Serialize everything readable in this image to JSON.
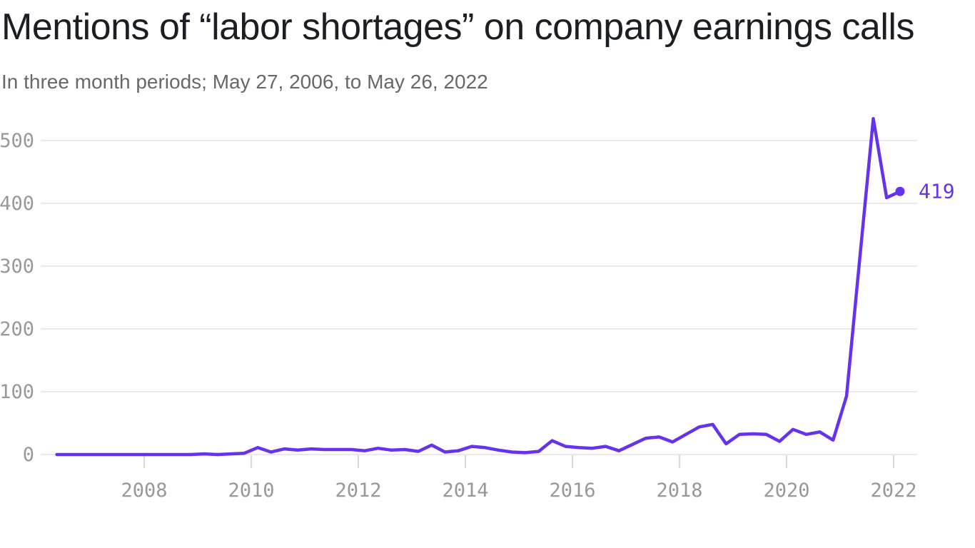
{
  "header": {
    "title": "Mentions of “labor shortages” on company earnings calls",
    "subtitle": "In three month periods; May 27, 2006, to May 26, 2022"
  },
  "chart_data": {
    "type": "line",
    "title": "Mentions of “labor shortages” on company earnings calls",
    "subtitle": "In three month periods; May 27, 2006, to May 26, 2022",
    "x_description": "Three-month periods ending on the labeled date, May 27, 2006 to May 26, 2022",
    "categories": [
      "Aug 2006",
      "Nov 2006",
      "Feb 2007",
      "May 2007",
      "Aug 2007",
      "Nov 2007",
      "Feb 2008",
      "May 2008",
      "Aug 2008",
      "Nov 2008",
      "Feb 2009",
      "May 2009",
      "Aug 2009",
      "Nov 2009",
      "Feb 2010",
      "May 2010",
      "Aug 2010",
      "Nov 2010",
      "Feb 2011",
      "May 2011",
      "Aug 2011",
      "Nov 2011",
      "Feb 2012",
      "May 2012",
      "Aug 2012",
      "Nov 2012",
      "Feb 2013",
      "May 2013",
      "Aug 2013",
      "Nov 2013",
      "Feb 2014",
      "May 2014",
      "Aug 2014",
      "Nov 2014",
      "Feb 2015",
      "May 2015",
      "Aug 2015",
      "Nov 2015",
      "Feb 2016",
      "May 2016",
      "Aug 2016",
      "Nov 2016",
      "Feb 2017",
      "May 2017",
      "Aug 2017",
      "Nov 2017",
      "Feb 2018",
      "May 2018",
      "Aug 2018",
      "Nov 2018",
      "Feb 2019",
      "May 2019",
      "Aug 2019",
      "Nov 2019",
      "Feb 2020",
      "May 2020",
      "Aug 2020",
      "Nov 2020",
      "Feb 2021",
      "May 2021",
      "Aug 2021",
      "Nov 2021",
      "Feb 2022",
      "May 2022"
    ],
    "values": [
      0,
      0,
      0,
      0,
      0,
      0,
      0,
      0,
      0,
      0,
      0,
      1,
      0,
      1,
      2,
      11,
      4,
      9,
      7,
      9,
      8,
      8,
      8,
      6,
      10,
      7,
      8,
      5,
      15,
      4,
      6,
      13,
      11,
      7,
      4,
      3,
      5,
      22,
      13,
      11,
      10,
      13,
      6,
      16,
      26,
      28,
      20,
      32,
      44,
      48,
      17,
      32,
      33,
      32,
      21,
      40,
      32,
      36,
      23,
      93,
      314,
      535,
      409,
      419
    ],
    "x_plot_start_year": 2006.37,
    "x_step_years": 0.25,
    "xticks": [
      "2008",
      "2010",
      "2012",
      "2014",
      "2016",
      "2018",
      "2020",
      "2022"
    ],
    "xtick_years": [
      2008,
      2010,
      2012,
      2014,
      2016,
      2018,
      2020,
      2022
    ],
    "yticks": [
      "0",
      "100",
      "200",
      "300",
      "400",
      "500"
    ],
    "ytick_values": [
      0,
      100,
      200,
      300,
      400,
      500
    ],
    "ylim": [
      0,
      560
    ],
    "grid": true,
    "legend": false,
    "end_label": "419",
    "end_value": 419,
    "peak_value": 535,
    "colors": {
      "line": "#6533ee",
      "end_dot": "#6533ee",
      "end_label": "#6533ee",
      "axis_label": "#96989c",
      "gridline": "#e9e9ec",
      "tick": "#d9d9dc",
      "title": "#1b1e23",
      "subtitle": "#66686c",
      "background": "#ffffff"
    }
  }
}
